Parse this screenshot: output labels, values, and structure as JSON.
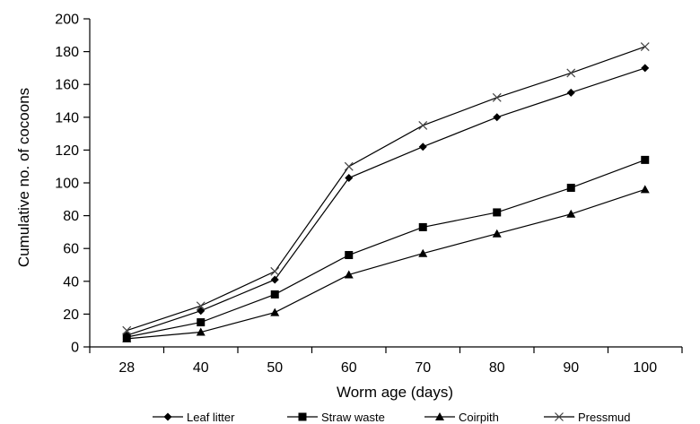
{
  "chart_data": {
    "type": "line",
    "x": [
      28,
      40,
      50,
      60,
      70,
      80,
      90,
      100
    ],
    "xticks": [
      "28",
      "40",
      "50",
      "60",
      "70",
      "80",
      "90",
      "100"
    ],
    "xlabel": "Worm age (days)",
    "ylabel": "Cumulative no. of cocoons",
    "ylim": [
      0,
      200
    ],
    "yticks": [
      0,
      20,
      40,
      60,
      80,
      100,
      120,
      140,
      160,
      180,
      200
    ],
    "grid": false,
    "legend_position": "bottom",
    "series": [
      {
        "name": "Leaf litter",
        "marker": "diamond",
        "values": [
          7,
          22,
          41,
          103,
          122,
          140,
          155,
          170
        ]
      },
      {
        "name": "Straw waste",
        "marker": "square",
        "values": [
          6,
          15,
          32,
          56,
          73,
          82,
          97,
          114
        ]
      },
      {
        "name": "Coirpith",
        "marker": "triangle",
        "values": [
          5,
          9,
          21,
          44,
          57,
          69,
          81,
          96
        ]
      },
      {
        "name": "Pressmud",
        "marker": "x",
        "values": [
          10,
          25,
          46,
          110,
          135,
          152,
          167,
          183
        ]
      }
    ]
  }
}
